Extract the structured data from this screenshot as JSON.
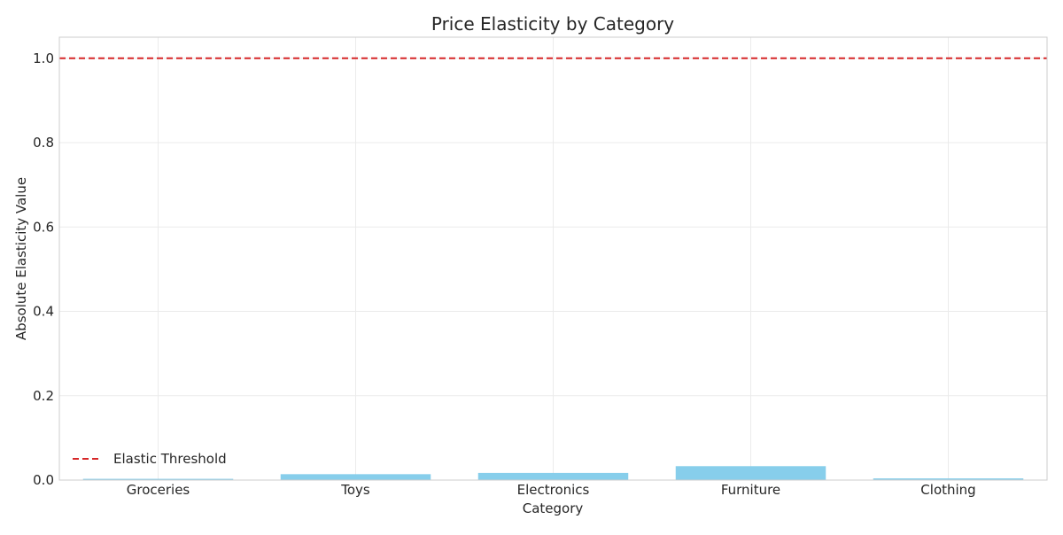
{
  "chart_data": {
    "type": "bar",
    "title": "Price Elasticity by Category",
    "xlabel": "Category",
    "ylabel": "Absolute Elasticity Value",
    "categories": [
      "Groceries",
      "Toys",
      "Electronics",
      "Furniture",
      "Clothing"
    ],
    "values": [
      0.003,
      0.014,
      0.017,
      0.033,
      0.004
    ],
    "ylim": [
      0,
      1.05
    ],
    "yticks": [
      "0.0",
      "0.2",
      "0.4",
      "0.6",
      "0.8",
      "1.0"
    ],
    "ytick_values": [
      0,
      0.2,
      0.4,
      0.6,
      0.8,
      1.0
    ],
    "threshold": {
      "name": "Elastic Threshold",
      "value": 1.0
    },
    "grid": true,
    "legend_position": "lower-left",
    "colors": {
      "bar": "#87ceeb",
      "threshold": "#d62728",
      "grid": "#ebebeb",
      "frame": "#cccccc"
    }
  }
}
